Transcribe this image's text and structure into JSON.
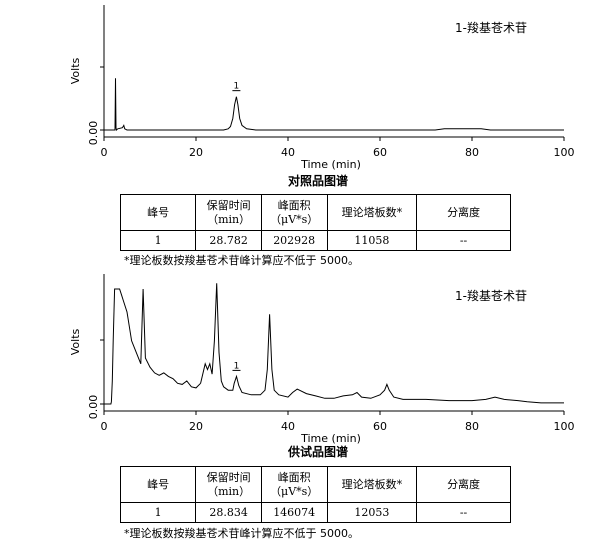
{
  "chart_data": [
    {
      "type": "line",
      "ylabel": "Volts",
      "xlabel": "Time (min)",
      "xlim": [
        0,
        100
      ],
      "ylim": [
        -0.05,
        1.0
      ],
      "x_ticks": [
        "0",
        "20",
        "40",
        "60",
        "80",
        "100"
      ],
      "y_ticks": [
        "0.00"
      ],
      "legend_text": "1-羧基苍术苷",
      "caption": "对照品图谱",
      "peak_label": "1",
      "series": [
        {
          "x": [
            0,
            2.4,
            2.5,
            2.6,
            2.7,
            3.0,
            4.0,
            4.3,
            4.5,
            5,
            10,
            20,
            26,
            27,
            27.5,
            28,
            28.4,
            28.78,
            29.1,
            29.5,
            30,
            31,
            33,
            40,
            60,
            72,
            74,
            78,
            82,
            84,
            100
          ],
          "y": [
            0,
            0,
            0.45,
            0.02,
            0,
            0.01,
            0.02,
            0.04,
            0.01,
            0,
            0,
            0,
            0,
            0.01,
            0.03,
            0.1,
            0.22,
            0.29,
            0.22,
            0.1,
            0.04,
            0.01,
            0,
            0,
            0,
            0,
            0.01,
            0.01,
            0.01,
            0,
            0
          ]
        }
      ]
    },
    {
      "type": "line",
      "ylabel": "Volts",
      "xlabel": "Time (min)",
      "xlim": [
        0,
        100
      ],
      "ylim": [
        -0.05,
        1.0
      ],
      "x_ticks": [
        "0",
        "20",
        "40",
        "60",
        "80",
        "100"
      ],
      "y_ticks": [
        "0.00"
      ],
      "legend_text": "1-羧基苍术苷",
      "caption": "供试品图谱",
      "peak_label": "1",
      "series": [
        {
          "x": [
            0,
            1.5,
            1.6,
            1.8,
            2,
            2.3,
            2.5,
            3,
            3.4,
            3.8,
            4.2,
            5,
            6,
            7,
            8,
            8.5,
            9,
            10,
            11,
            12,
            13,
            14,
            15,
            16,
            17,
            18,
            19,
            20,
            21,
            22,
            22.5,
            23,
            23.5,
            24,
            24.5,
            25,
            25.5,
            26,
            27,
            28,
            28.3,
            28.8,
            29.3,
            30,
            32,
            34,
            35,
            35.5,
            36,
            36.5,
            37,
            38,
            40,
            41,
            42,
            44,
            46,
            48,
            50,
            52,
            54,
            55,
            56,
            58,
            60,
            61,
            61.5,
            62,
            63,
            65,
            70,
            75,
            80,
            83,
            85,
            87,
            90,
            92,
            95,
            100
          ],
          "y": [
            0,
            0,
            0.02,
            0.2,
            0.55,
            1.0,
            1.0,
            1.0,
            1.0,
            0.95,
            0.9,
            0.8,
            0.55,
            0.45,
            0.35,
            1.0,
            0.4,
            0.32,
            0.27,
            0.25,
            0.27,
            0.24,
            0.22,
            0.18,
            0.17,
            0.2,
            0.15,
            0.14,
            0.18,
            0.35,
            0.3,
            0.35,
            0.26,
            0.55,
            1.05,
            0.45,
            0.2,
            0.15,
            0.12,
            0.12,
            0.18,
            0.24,
            0.16,
            0.1,
            0.08,
            0.08,
            0.12,
            0.3,
            0.78,
            0.3,
            0.12,
            0.08,
            0.06,
            0.1,
            0.13,
            0.09,
            0.07,
            0.05,
            0.05,
            0.07,
            0.08,
            0.1,
            0.06,
            0.05,
            0.08,
            0.12,
            0.17,
            0.12,
            0.06,
            0.04,
            0.04,
            0.03,
            0.03,
            0.04,
            0.06,
            0.04,
            0.03,
            0.02,
            0.01,
            0.01
          ]
        }
      ]
    }
  ],
  "tables": [
    {
      "headers": [
        "峰号",
        "保留时间",
        "（min）",
        "峰面积",
        "（μV*s）",
        "理论塔板数*",
        "分离度"
      ],
      "row": [
        "1",
        "28.782",
        "202928",
        "11058",
        "--"
      ],
      "note": "*理论板数按羧基苍术苷峰计算应不低于 5000。"
    },
    {
      "headers": [
        "峰号",
        "保留时间",
        "（min）",
        "峰面积",
        "（μV*s）",
        "理论塔板数*",
        "分离度"
      ],
      "row": [
        "1",
        "28.834",
        "146074",
        "12053",
        "--"
      ],
      "note": "*理论板数按羧基苍术苷峰计算应不低于 5000。"
    }
  ]
}
